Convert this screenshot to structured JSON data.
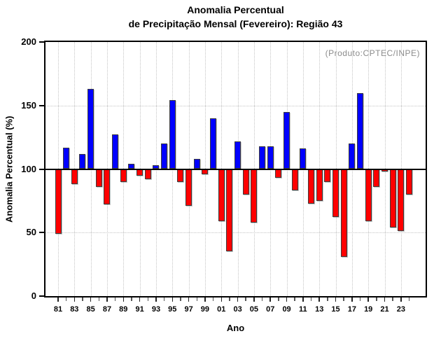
{
  "figure": {
    "title_line1": "Anomalia Percentual",
    "title_line2": "de Precipitação Mensal (Fevereiro): Região 43",
    "annotation": "(Produto:CPTEC/INPE)",
    "x_axis_label": "Ano",
    "y_axis_label": "Anomalia Percentual (%)"
  },
  "chart_data": {
    "type": "bar",
    "title": "Anomalia Percentual de Precipitação Mensal (Fevereiro): Região 43",
    "xlabel": "Ano",
    "ylabel": "Anomalia Percentual (%)",
    "ylim": [
      0,
      200
    ],
    "y_ticks": [
      0,
      50,
      100,
      150,
      200
    ],
    "baseline": 100,
    "grid_y_values": [
      50,
      150
    ],
    "grid": "dotted",
    "legend": "none",
    "annotation": "(Produto:CPTEC/INPE)",
    "categories": [
      "81",
      "82",
      "83",
      "84",
      "85",
      "86",
      "87",
      "88",
      "89",
      "90",
      "91",
      "92",
      "93",
      "94",
      "95",
      "96",
      "97",
      "98",
      "99",
      "00",
      "01",
      "02",
      "03",
      "04",
      "05",
      "06",
      "07",
      "08",
      "09",
      "10",
      "11",
      "12",
      "13",
      "14",
      "15",
      "16",
      "17",
      "18",
      "19",
      "20",
      "21",
      "22",
      "23",
      "24"
    ],
    "values": [
      49,
      117,
      88,
      112,
      163,
      86,
      72,
      127,
      90,
      104,
      95,
      92,
      103,
      120,
      154,
      90,
      71,
      108,
      96,
      140,
      59,
      35,
      122,
      80,
      58,
      118,
      118,
      93,
      145,
      83,
      116,
      73,
      75,
      90,
      62,
      31,
      120,
      160,
      59,
      86,
      98,
      54,
      51,
      80
    ],
    "x_tick_labels_shown": [
      "81",
      "83",
      "85",
      "87",
      "89",
      "91",
      "93",
      "95",
      "97",
      "99",
      "01",
      "03",
      "05",
      "07",
      "09",
      "11",
      "13",
      "15",
      "17",
      "19",
      "21",
      "23"
    ],
    "colors": {
      "above_baseline": "#0000ff",
      "below_baseline": "#ff0000",
      "grid": "#c4c4c4",
      "baseline_line": "#000000",
      "annotation_text": "#8c8c8c"
    }
  }
}
